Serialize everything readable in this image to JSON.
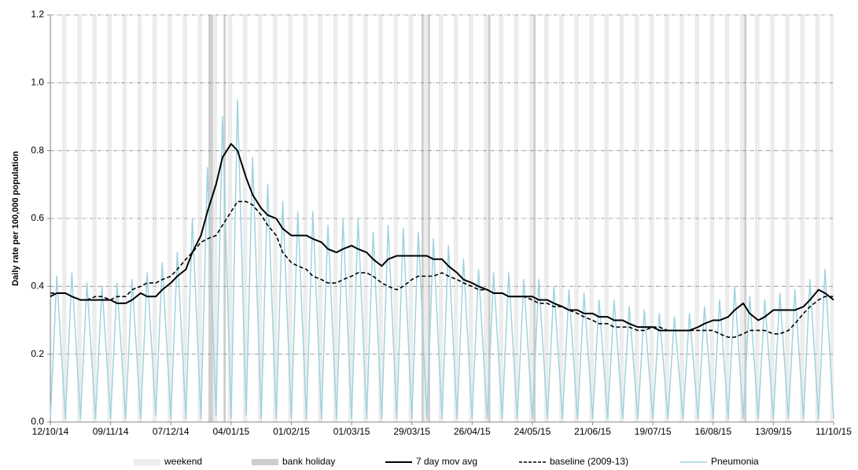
{
  "chart_data": {
    "type": "line",
    "y_label": "Daily rate per 100,000 population",
    "x": [
      0,
      3,
      7,
      10,
      14,
      17,
      21,
      24,
      28,
      31,
      35,
      38,
      42,
      45,
      49,
      52,
      56,
      59,
      63,
      66,
      70,
      73,
      77,
      80,
      84,
      87,
      91,
      94,
      98,
      101,
      105,
      108,
      112,
      115,
      119,
      122,
      126,
      129,
      133,
      136,
      140,
      143,
      147,
      150,
      154,
      157,
      161,
      164,
      168,
      171,
      175,
      178,
      182,
      185,
      189,
      192,
      196,
      199,
      203,
      206,
      210,
      213,
      217,
      220,
      224,
      227,
      231,
      234,
      238,
      241,
      245,
      248,
      252,
      255,
      259,
      262,
      266,
      269,
      273,
      276,
      280,
      283,
      287,
      290,
      294,
      297,
      301,
      304,
      308,
      311,
      315,
      318,
      322,
      325,
      329,
      332,
      336,
      339,
      343,
      346,
      350,
      353,
      357,
      360,
      364
    ],
    "series": [
      {
        "name": "Pneumonia",
        "color": "#9ed3df",
        "width": 1.5,
        "dash": false,
        "values": [
          0.01,
          0.43,
          0.01,
          0.44,
          0.01,
          0.41,
          0.01,
          0.4,
          0.01,
          0.41,
          0.01,
          0.42,
          0.01,
          0.44,
          0.02,
          0.47,
          0.01,
          0.5,
          0.01,
          0.6,
          0.01,
          0.75,
          0.02,
          0.9,
          0.01,
          0.95,
          0.02,
          0.78,
          0.01,
          0.7,
          0.01,
          0.65,
          0.01,
          0.62,
          0.01,
          0.62,
          0.01,
          0.58,
          0.01,
          0.6,
          0.01,
          0.6,
          0.01,
          0.56,
          0.01,
          0.58,
          0.01,
          0.57,
          0.01,
          0.56,
          0.01,
          0.54,
          0.01,
          0.52,
          0.01,
          0.48,
          0.01,
          0.45,
          0.01,
          0.44,
          0.01,
          0.44,
          0.01,
          0.42,
          0.01,
          0.42,
          0.01,
          0.4,
          0.01,
          0.39,
          0.01,
          0.38,
          0.01,
          0.36,
          0.01,
          0.36,
          0.01,
          0.34,
          0.01,
          0.33,
          0.01,
          0.32,
          0.01,
          0.31,
          0.01,
          0.32,
          0.01,
          0.34,
          0.01,
          0.36,
          0.01,
          0.4,
          0.01,
          0.37,
          0.01,
          0.36,
          0.01,
          0.38,
          0.01,
          0.39,
          0.01,
          0.42,
          0.01,
          0.45,
          0.01
        ]
      },
      {
        "name": "baseline (2009-13)",
        "color": "#000000",
        "width": 1.6,
        "dash": true,
        "values": [
          0.38,
          0.38,
          0.38,
          0.37,
          0.36,
          0.36,
          0.37,
          0.37,
          0.36,
          0.37,
          0.37,
          0.39,
          0.4,
          0.41,
          0.41,
          0.42,
          0.43,
          0.45,
          0.48,
          0.5,
          0.53,
          0.54,
          0.55,
          0.58,
          0.62,
          0.65,
          0.65,
          0.64,
          0.61,
          0.58,
          0.55,
          0.5,
          0.47,
          0.46,
          0.45,
          0.43,
          0.42,
          0.41,
          0.41,
          0.42,
          0.43,
          0.44,
          0.44,
          0.43,
          0.41,
          0.4,
          0.39,
          0.4,
          0.42,
          0.43,
          0.43,
          0.43,
          0.44,
          0.43,
          0.42,
          0.41,
          0.4,
          0.39,
          0.39,
          0.38,
          0.38,
          0.37,
          0.37,
          0.37,
          0.36,
          0.35,
          0.35,
          0.34,
          0.34,
          0.33,
          0.32,
          0.31,
          0.3,
          0.29,
          0.29,
          0.28,
          0.28,
          0.28,
          0.27,
          0.27,
          0.28,
          0.28,
          0.27,
          0.27,
          0.27,
          0.27,
          0.27,
          0.27,
          0.27,
          0.26,
          0.25,
          0.25,
          0.26,
          0.27,
          0.27,
          0.27,
          0.26,
          0.26,
          0.27,
          0.29,
          0.32,
          0.34,
          0.36,
          0.37,
          0.37
        ]
      },
      {
        "name": "7 day mov avg",
        "color": "#000000",
        "width": 2,
        "dash": false,
        "values": [
          0.37,
          0.38,
          0.38,
          0.37,
          0.36,
          0.36,
          0.36,
          0.36,
          0.36,
          0.35,
          0.35,
          0.36,
          0.38,
          0.37,
          0.37,
          0.39,
          0.41,
          0.43,
          0.45,
          0.5,
          0.55,
          0.62,
          0.7,
          0.78,
          0.82,
          0.8,
          0.72,
          0.67,
          0.63,
          0.61,
          0.6,
          0.57,
          0.55,
          0.55,
          0.55,
          0.54,
          0.53,
          0.51,
          0.5,
          0.51,
          0.52,
          0.51,
          0.5,
          0.48,
          0.46,
          0.48,
          0.49,
          0.49,
          0.49,
          0.49,
          0.49,
          0.48,
          0.48,
          0.46,
          0.44,
          0.42,
          0.41,
          0.4,
          0.39,
          0.38,
          0.38,
          0.37,
          0.37,
          0.37,
          0.37,
          0.36,
          0.36,
          0.35,
          0.34,
          0.33,
          0.33,
          0.32,
          0.32,
          0.31,
          0.31,
          0.3,
          0.3,
          0.29,
          0.28,
          0.28,
          0.28,
          0.27,
          0.27,
          0.27,
          0.27,
          0.27,
          0.28,
          0.29,
          0.3,
          0.3,
          0.31,
          0.33,
          0.35,
          0.32,
          0.3,
          0.31,
          0.33,
          0.33,
          0.33,
          0.33,
          0.34,
          0.36,
          0.39,
          0.38,
          0.36
        ]
      }
    ],
    "weekend": {
      "name": "weekend",
      "color": "#ececec"
    },
    "bank_holiday": {
      "name": "bank holiday",
      "color": "#cdcdcd",
      "days": [
        74,
        75,
        81,
        173,
        176,
        204,
        225,
        323
      ]
    },
    "legend": "bottom",
    "grid": true,
    "xlim": [
      0,
      364
    ],
    "xticks": [
      {
        "value": 0,
        "label": "12/10/14"
      },
      {
        "value": 28,
        "label": "09/11/14"
      },
      {
        "value": 56,
        "label": "07/12/14"
      },
      {
        "value": 84,
        "label": "04/01/15"
      },
      {
        "value": 112,
        "label": "01/02/15"
      },
      {
        "value": 140,
        "label": "01/03/15"
      },
      {
        "value": 168,
        "label": "29/03/15"
      },
      {
        "value": 196,
        "label": "26/04/15"
      },
      {
        "value": 224,
        "label": "24/05/15"
      },
      {
        "value": 252,
        "label": "21/06/15"
      },
      {
        "value": 280,
        "label": "19/07/15"
      },
      {
        "value": 308,
        "label": "16/08/15"
      },
      {
        "value": 336,
        "label": "13/09/15"
      },
      {
        "value": 364,
        "label": "11/10/15"
      }
    ],
    "ylim": [
      0,
      1.2
    ],
    "yticks": [
      {
        "value": 0,
        "label": "0.0"
      },
      {
        "value": 0.2,
        "label": "0.2"
      },
      {
        "value": 0.4,
        "label": "0.4"
      },
      {
        "value": 0.6,
        "label": "0.6"
      },
      {
        "value": 0.8,
        "label": "0.8"
      },
      {
        "value": 1,
        "label": "1.0"
      },
      {
        "value": 1.2,
        "label": "1.2"
      }
    ]
  }
}
